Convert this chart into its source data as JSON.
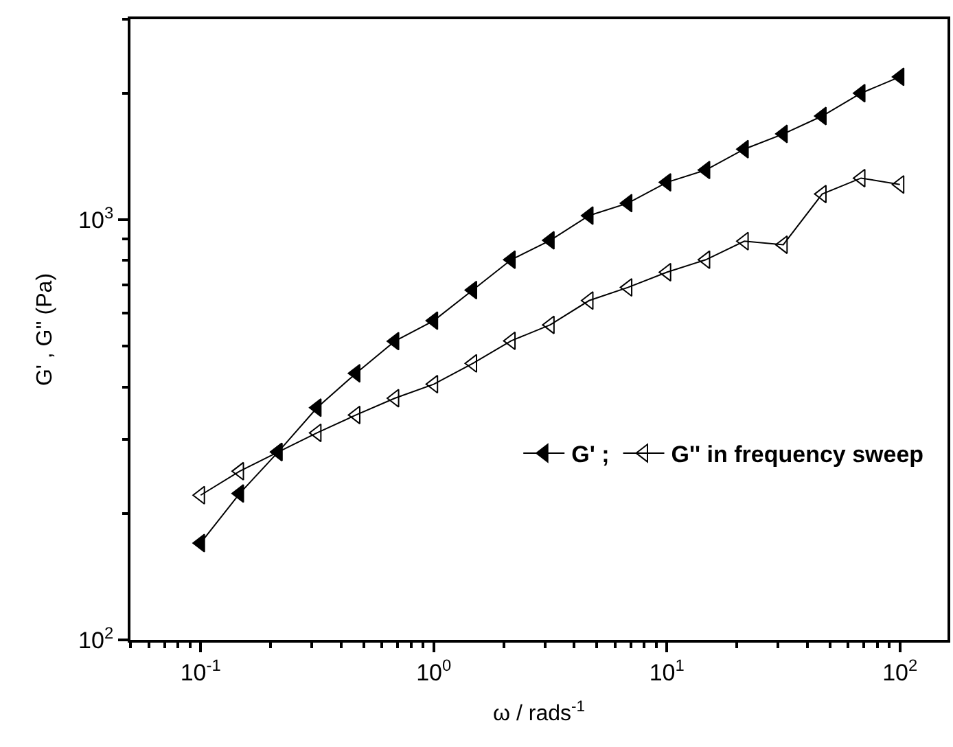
{
  "chart_data": {
    "type": "line",
    "xlabel": "ω / rads$^{-1}$",
    "ylabel": "G' , G'' (Pa)",
    "log": "xy",
    "marker": "triangle",
    "line_style": "solid",
    "legend": "right",
    "xlim": [
      0.05,
      160
    ],
    "ylim": [
      100,
      3000
    ],
    "xticks": [
      {
        "value": 0.1,
        "label": "10$^{-1}$"
      },
      {
        "value": 1,
        "label": "10$^{0}$"
      },
      {
        "value": 10,
        "label": "10$^{1}$"
      },
      {
        "value": 100,
        "label": "10$^{2}$"
      }
    ],
    "yticks": [
      {
        "value": 100,
        "label": "10$^{2}$"
      },
      {
        "value": 1000,
        "label": "10$^{3}$"
      }
    ],
    "x": [
      0.1,
      0.147,
      0.215,
      0.316,
      0.464,
      0.681,
      1,
      1.47,
      2.15,
      3.16,
      4.64,
      6.81,
      10,
      14.7,
      21.5,
      31.6,
      46.4,
      68.1,
      100
    ],
    "series": [
      {
        "name": "G' ;",
        "color": "#000000",
        "values": [
          170,
          223,
          280,
          357,
          431,
          514,
          575,
          680,
          803,
          893,
          1023,
          1095,
          1227,
          1313,
          1472,
          1600,
          1765,
          2000,
          2188
        ]
      },
      {
        "name": "G'' in frequency sweep",
        "color": "#000000",
        "values": [
          221,
          252,
          280,
          311,
          343,
          376,
          406,
          455,
          515,
          562,
          642,
          690,
          750,
          803,
          889,
          872,
          1151,
          1256,
          1213
        ]
      }
    ]
  }
}
